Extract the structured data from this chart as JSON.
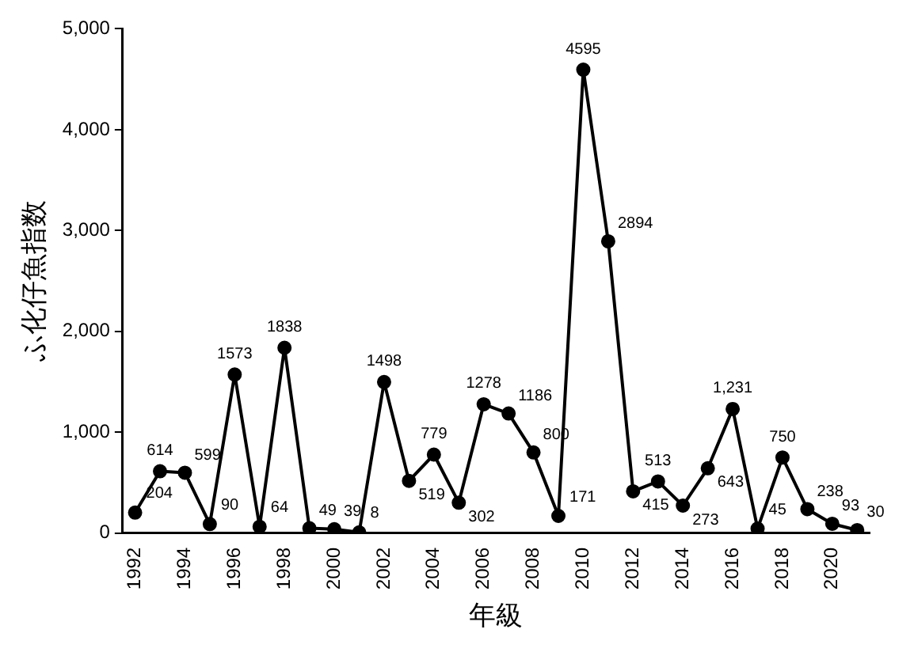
{
  "chart_data": {
    "type": "line",
    "xlabel": "年級",
    "ylabel": "ふ化仔魚指数",
    "categories": [
      "1992",
      null,
      "1994",
      null,
      "1996",
      null,
      "1998",
      null,
      "2000",
      null,
      "2002",
      null,
      "2004",
      null,
      "2006",
      null,
      "2008",
      null,
      "2010",
      null,
      "2012",
      null,
      "2014",
      null,
      "2016",
      null,
      "2018",
      null,
      "2020",
      null
    ],
    "values": [
      204,
      614,
      599,
      90,
      1573,
      64,
      1838,
      49,
      39,
      8,
      1498,
      519,
      779,
      302,
      1278,
      1186,
      800,
      171,
      4595,
      2894,
      415,
      513,
      273,
      643,
      1231,
      45,
      750,
      238,
      93,
      30
    ],
    "value_labels": [
      "204",
      "614",
      "599",
      "90",
      "1573",
      "64",
      "1838",
      "49",
      "39",
      "8",
      "1498",
      "519",
      "779",
      "302",
      "1278",
      "1186",
      "800",
      "171",
      "4595",
      "2894",
      "415",
      "513",
      "273",
      "643",
      "1,231",
      "45",
      "750",
      "238",
      "93",
      "30"
    ],
    "color": "#000000",
    "marker": "circle",
    "line_style": "solid",
    "legend": false,
    "grid": false,
    "ylim": [
      0,
      5000
    ],
    "yticks": [
      0,
      {
        "value": 1000,
        "label": "1,000"
      },
      {
        "value": 2000,
        "label": "2,000"
      },
      {
        "value": 3000,
        "label": "3,000"
      },
      {
        "value": 4000,
        "label": "4,000"
      },
      {
        "value": 5000,
        "label": "5,000"
      }
    ]
  }
}
